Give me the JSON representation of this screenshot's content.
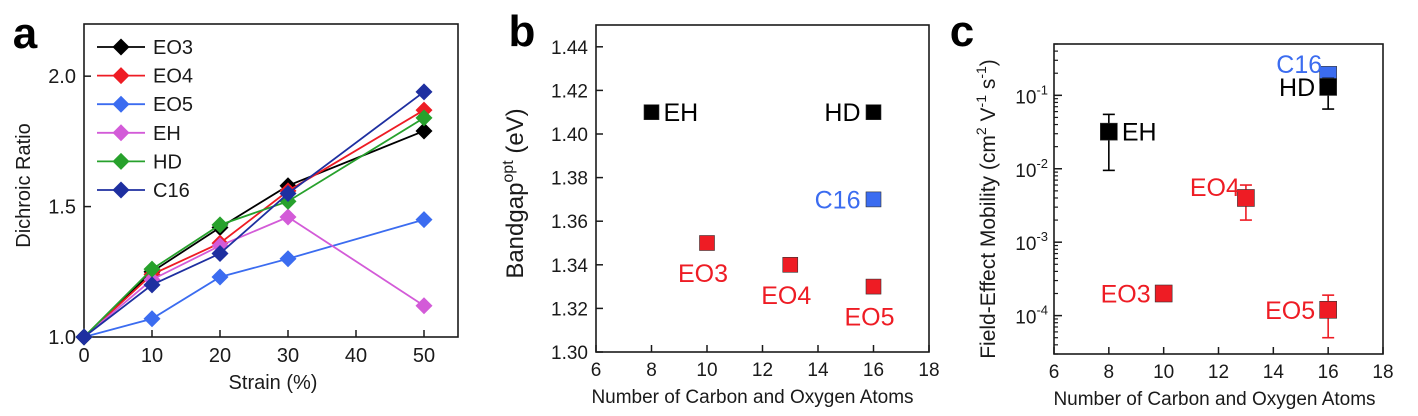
{
  "chart_data": [
    {
      "panel_label": "a",
      "type": "line",
      "xlabel": "Strain (%)",
      "ylabel": "Dichroic Ratio",
      "xlim": [
        0,
        55
      ],
      "ylim": [
        1.0,
        2.2
      ],
      "xticks": [
        "0",
        "10",
        "20",
        "30",
        "40",
        "50"
      ],
      "yticks": [
        "1.0",
        "1.5",
        "2.0"
      ],
      "x": [
        0,
        10,
        20,
        30,
        50
      ],
      "legend_position": "top-left",
      "series": [
        {
          "name": "EO3",
          "color": "#000000",
          "values": [
            1.0,
            1.25,
            1.42,
            1.58,
            1.79
          ]
        },
        {
          "name": "EO4",
          "color": "#ee1c24",
          "values": [
            1.0,
            1.24,
            1.36,
            1.56,
            1.87
          ]
        },
        {
          "name": "EO5",
          "color": "#3b6cf0",
          "values": [
            1.0,
            1.07,
            1.23,
            1.3,
            1.45
          ]
        },
        {
          "name": "EH",
          "color": "#d35bd8",
          "values": [
            1.0,
            1.22,
            1.35,
            1.46,
            1.12
          ]
        },
        {
          "name": "HD",
          "color": "#27a12c",
          "values": [
            1.0,
            1.26,
            1.43,
            1.52,
            1.84
          ]
        },
        {
          "name": "C16",
          "color": "#1e2fa0",
          "values": [
            1.0,
            1.2,
            1.32,
            1.55,
            1.94
          ]
        }
      ]
    },
    {
      "panel_label": "b",
      "type": "scatter",
      "xlabel": "Number of Carbon and Oxygen Atoms",
      "ylabel": "Bandgap",
      "ylabel_sup": "opt",
      "ylabel_unit": " (eV)",
      "xlim": [
        6,
        18
      ],
      "ylim": [
        1.3,
        1.45
      ],
      "xticks": [
        "6",
        "8",
        "10",
        "12",
        "14",
        "16",
        "18"
      ],
      "yticks": [
        "1.30",
        "1.32",
        "1.34",
        "1.36",
        "1.38",
        "1.40",
        "1.42",
        "1.44"
      ],
      "points": [
        {
          "label": "EH",
          "x": 8,
          "y": 1.41,
          "color": "#000000",
          "text_color": "#000000",
          "label_pos": "right"
        },
        {
          "label": "HD",
          "x": 16,
          "y": 1.41,
          "color": "#000000",
          "text_color": "#000000",
          "label_pos": "left"
        },
        {
          "label": "C16",
          "x": 16,
          "y": 1.37,
          "color": "#3b6cf0",
          "text_color": "#3b6cf0",
          "label_pos": "left"
        },
        {
          "label": "EO3",
          "x": 10,
          "y": 1.35,
          "color": "#ee1c24",
          "text_color": "#ee1c24",
          "label_pos": "below"
        },
        {
          "label": "EO4",
          "x": 13,
          "y": 1.34,
          "color": "#ee1c24",
          "text_color": "#ee1c24",
          "label_pos": "below"
        },
        {
          "label": "EO5",
          "x": 16,
          "y": 1.33,
          "color": "#ee1c24",
          "text_color": "#ee1c24",
          "label_pos": "below"
        }
      ]
    },
    {
      "panel_label": "c",
      "type": "scatter",
      "xlabel": "Number of Carbon and Oxygen Atoms",
      "ylabel": "Field-Effect Mobility (cm",
      "ylabel_parts": [
        "2",
        " V",
        "-1",
        " s",
        "-1",
        ")"
      ],
      "yscale": "log",
      "xlim": [
        6,
        18
      ],
      "ylim": [
        3e-05,
        0.5
      ],
      "xticks": [
        "6",
        "8",
        "10",
        "12",
        "14",
        "16",
        "18"
      ],
      "yticks": [
        {
          "base": "10",
          "exp": "-4",
          "value": 0.0001
        },
        {
          "base": "10",
          "exp": "-3",
          "value": 0.001
        },
        {
          "base": "10",
          "exp": "-2",
          "value": 0.01
        },
        {
          "base": "10",
          "exp": "-1",
          "value": 0.1
        }
      ],
      "points": [
        {
          "label": "EH",
          "x": 8,
          "y": 0.032,
          "err_low": 0.0095,
          "err_high": 0.055,
          "color": "#000000",
          "text_color": "#000000",
          "label_pos": "right"
        },
        {
          "label": "C16",
          "x": 16,
          "y": 0.19,
          "err_low": 0.14,
          "err_high": 0.24,
          "color": "#3b6cf0",
          "text_color": "#3b6cf0",
          "label_pos": "upper-left"
        },
        {
          "label": "HD",
          "x": 16,
          "y": 0.13,
          "err_low": 0.065,
          "err_high": 0.17,
          "color": "#000000",
          "text_color": "#000000",
          "label_pos": "left"
        },
        {
          "label": "EO4",
          "x": 13,
          "y": 0.004,
          "err_low": 0.002,
          "err_high": 0.006,
          "color": "#ee1c24",
          "text_color": "#ee1c24",
          "label_pos": "upper-left"
        },
        {
          "label": "EO3",
          "x": 10,
          "y": 0.0002,
          "err_low": 0.00017,
          "err_high": 0.00024,
          "color": "#ee1c24",
          "text_color": "#ee1c24",
          "label_pos": "left"
        },
        {
          "label": "EO5",
          "x": 16,
          "y": 0.00012,
          "err_low": 5e-05,
          "err_high": 0.00019,
          "color": "#ee1c24",
          "text_color": "#ee1c24",
          "label_pos": "left"
        }
      ]
    }
  ]
}
